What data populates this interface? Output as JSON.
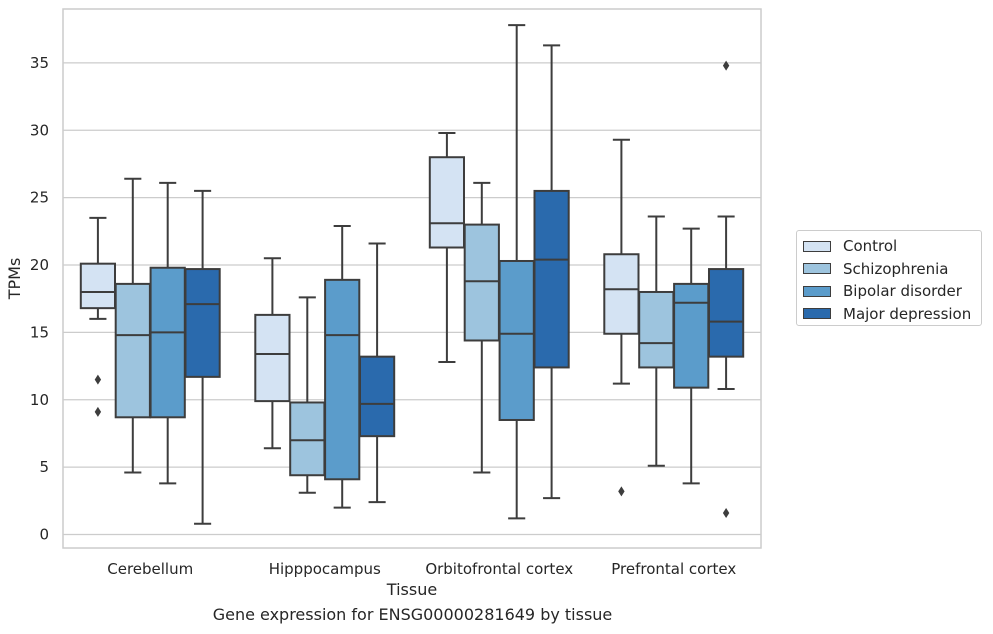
{
  "chart_data": {
    "type": "box",
    "title": "",
    "caption": "Gene expression for ENSG00000281649 by tissue",
    "xlabel": "Tissue",
    "ylabel": "TPMs",
    "ylim": [
      -1,
      39
    ],
    "yticks": [
      0,
      5,
      10,
      15,
      20,
      25,
      30,
      35
    ],
    "grid": "horizontal",
    "legend_position": "right",
    "categories": [
      "Cerebellum",
      "Hipppocampus",
      "Orbitofrontal cortex",
      "Prefrontal cortex"
    ],
    "series": [
      {
        "name": "Control",
        "color": "#d4e3f3",
        "boxes": [
          {
            "min": 16.0,
            "q1": 16.8,
            "median": 18.0,
            "q3": 20.1,
            "max": 23.5,
            "outliers": [
              11.5,
              9.1
            ]
          },
          {
            "min": 6.4,
            "q1": 9.9,
            "median": 13.4,
            "q3": 16.3,
            "max": 20.5,
            "outliers": []
          },
          {
            "min": 12.8,
            "q1": 21.3,
            "median": 23.1,
            "q3": 28.0,
            "max": 29.8,
            "outliers": []
          },
          {
            "min": 11.2,
            "q1": 14.9,
            "median": 18.2,
            "q3": 20.8,
            "max": 29.3,
            "outliers": [
              3.2
            ]
          }
        ]
      },
      {
        "name": "Schizophrenia",
        "color": "#9dc4de",
        "boxes": [
          {
            "min": 4.6,
            "q1": 8.7,
            "median": 14.8,
            "q3": 18.6,
            "max": 26.4,
            "outliers": []
          },
          {
            "min": 3.1,
            "q1": 4.4,
            "median": 7.0,
            "q3": 9.8,
            "max": 17.6,
            "outliers": []
          },
          {
            "min": 4.6,
            "q1": 14.4,
            "median": 18.8,
            "q3": 23.0,
            "max": 26.1,
            "outliers": []
          },
          {
            "min": 5.1,
            "q1": 12.4,
            "median": 14.2,
            "q3": 18.0,
            "max": 23.6,
            "outliers": []
          }
        ]
      },
      {
        "name": "Bipolar disorder",
        "color": "#5b9ccb",
        "boxes": [
          {
            "min": 3.8,
            "q1": 8.7,
            "median": 15.0,
            "q3": 19.8,
            "max": 26.1,
            "outliers": []
          },
          {
            "min": 2.0,
            "q1": 4.1,
            "median": 14.8,
            "q3": 18.9,
            "max": 22.9,
            "outliers": []
          },
          {
            "min": 1.2,
            "q1": 8.5,
            "median": 14.9,
            "q3": 20.3,
            "max": 37.8,
            "outliers": []
          },
          {
            "min": 3.8,
            "q1": 10.9,
            "median": 17.2,
            "q3": 18.6,
            "max": 22.7,
            "outliers": []
          }
        ]
      },
      {
        "name": "Major depression",
        "color": "#2a6aad",
        "boxes": [
          {
            "min": 0.8,
            "q1": 11.7,
            "median": 17.1,
            "q3": 19.7,
            "max": 25.5,
            "outliers": []
          },
          {
            "min": 2.4,
            "q1": 7.3,
            "median": 9.7,
            "q3": 13.2,
            "max": 21.6,
            "outliers": []
          },
          {
            "min": 2.7,
            "q1": 12.4,
            "median": 20.4,
            "q3": 25.5,
            "max": 36.3,
            "outliers": []
          },
          {
            "min": 10.8,
            "q1": 13.2,
            "median": 15.8,
            "q3": 19.7,
            "max": 23.6,
            "outliers": [
              34.8,
              1.6
            ]
          }
        ]
      }
    ]
  }
}
